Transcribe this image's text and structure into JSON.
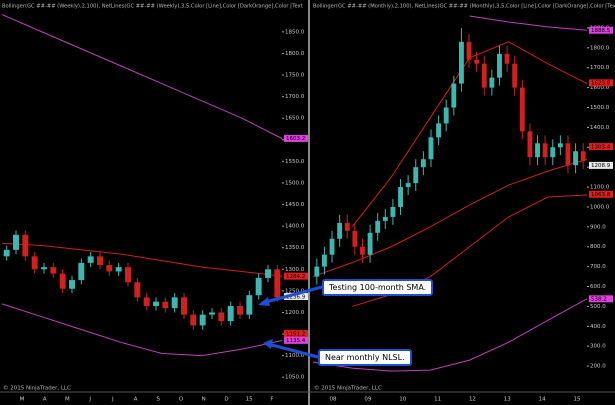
{
  "chart_data": [
    {
      "type": "candlestick",
      "title": "Bollinger(GC ##-## (Weekly),2,100), NetLines(GC ##-## (Weekly),3,5,Color [Line],Color [DarkOrange],Color [Text",
      "footer": "© 2015 NinjaTrader, LLC",
      "x_labels": [
        "M",
        "A",
        "M",
        "J",
        "J",
        "A",
        "S",
        "O",
        "N",
        "D",
        "15",
        "F"
      ],
      "ylim": [
        1032,
        1896
      ],
      "yticks": [
        {
          "value": 1050,
          "label": "1050.0"
        },
        {
          "value": 1100,
          "label": "1100.0"
        },
        {
          "value": 1150,
          "label": "1150.0"
        },
        {
          "value": 1200,
          "label": "1200.0"
        },
        {
          "value": 1250,
          "label": "1250.0"
        },
        {
          "value": 1300,
          "label": "1300.0"
        },
        {
          "value": 1350,
          "label": "1350.0"
        },
        {
          "value": 1400,
          "label": "1400.0"
        },
        {
          "value": 1450,
          "label": "1450.0"
        },
        {
          "value": 1500,
          "label": "1500.0"
        },
        {
          "value": 1550,
          "label": "1550.0"
        },
        {
          "value": 1600,
          "label": "1600.0"
        },
        {
          "value": 1650,
          "label": "1650.0"
        },
        {
          "value": 1700,
          "label": "1700.0"
        },
        {
          "value": 1750,
          "label": "1750.0"
        },
        {
          "value": 1800,
          "label": "1800.0"
        },
        {
          "value": 1850,
          "label": "1850.0"
        }
      ],
      "up_color": "#3cb8b0",
      "down_color": "#d02020",
      "open": [
        1330,
        1345,
        1380,
        1330,
        1300,
        1305,
        1290,
        1255,
        1275,
        1315,
        1330,
        1310,
        1295,
        1305,
        1270,
        1235,
        1215,
        1225,
        1210,
        1235,
        1195,
        1170,
        1195,
        1200,
        1180,
        1215,
        1195,
        1240,
        1280,
        1300
      ],
      "high": [
        1355,
        1390,
        1390,
        1340,
        1315,
        1315,
        1300,
        1285,
        1325,
        1340,
        1340,
        1320,
        1315,
        1315,
        1280,
        1245,
        1235,
        1235,
        1245,
        1245,
        1205,
        1205,
        1210,
        1210,
        1225,
        1225,
        1250,
        1290,
        1310,
        1310
      ],
      "low": [
        1320,
        1335,
        1320,
        1290,
        1290,
        1280,
        1245,
        1245,
        1265,
        1305,
        1300,
        1285,
        1285,
        1260,
        1225,
        1205,
        1205,
        1200,
        1200,
        1185,
        1160,
        1160,
        1185,
        1170,
        1170,
        1185,
        1185,
        1230,
        1270,
        1225
      ],
      "close": [
        1345,
        1380,
        1330,
        1300,
        1305,
        1290,
        1255,
        1275,
        1315,
        1330,
        1310,
        1295,
        1305,
        1270,
        1235,
        1215,
        1225,
        1210,
        1235,
        1195,
        1170,
        1195,
        1200,
        1180,
        1215,
        1195,
        1240,
        1280,
        1300,
        1235
      ],
      "series": [
        {
          "color": "#c040c0",
          "values": [
            1890,
            1850,
            1810,
            1770,
            1730,
            1690,
            1650,
            1603
          ]
        },
        {
          "color": "#d02020",
          "values": [
            1360,
            1355,
            1345,
            1335,
            1320,
            1305,
            1295,
            1284
          ]
        },
        {
          "color": "#c040c0",
          "values": [
            1220,
            1190,
            1160,
            1130,
            1105,
            1100,
            1115,
            1135
          ]
        }
      ],
      "price_tags": [
        {
          "value": 1603.2,
          "color": "#e040e0"
        },
        {
          "value": 1284.2,
          "color": "#e02020"
        },
        {
          "value": 1236.9,
          "color": "#e8e8e8"
        },
        {
          "value": 1151.2,
          "color": "#e02020"
        },
        {
          "value": 1135.4,
          "color": "#e040e0"
        }
      ]
    },
    {
      "type": "candlestick",
      "title": "Bollinger(GC ##-## (Monthly),2,100), NetLines(GC ##-## (Monthly),3,5,Color [Line],Color [DarkOrange],Color [Text",
      "footer": "© 2015 NinjaTrader, LLC",
      "x_labels": [
        "08",
        "09",
        "10",
        "11",
        "12",
        "13",
        "14",
        "15"
      ],
      "ylim": [
        105,
        1980
      ],
      "yticks": [
        {
          "value": 200,
          "label": "200.0"
        },
        {
          "value": 300,
          "label": "300.0"
        },
        {
          "value": 400,
          "label": "400.0"
        },
        {
          "value": 500,
          "label": "500.0"
        },
        {
          "value": 600,
          "label": "600.0"
        },
        {
          "value": 700,
          "label": "700.0"
        },
        {
          "value": 800,
          "label": "800.0"
        },
        {
          "value": 900,
          "label": "900.0"
        },
        {
          "value": 1000,
          "label": "1000.0"
        },
        {
          "value": 1100,
          "label": "1100.0"
        },
        {
          "value": 1200,
          "label": "1200.0"
        },
        {
          "value": 1300,
          "label": "1300.0"
        },
        {
          "value": 1400,
          "label": "1400.0"
        },
        {
          "value": 1500,
          "label": "1500.0"
        },
        {
          "value": 1600,
          "label": "1600.0"
        },
        {
          "value": 1700,
          "label": "1700.0"
        },
        {
          "value": 1800,
          "label": "1800.0"
        },
        {
          "value": 1900,
          "label": "1900.0"
        }
      ],
      "up_color": "#3cb8b0",
      "down_color": "#d02020",
      "open": [
        650,
        700,
        760,
        840,
        920,
        880,
        800,
        760,
        870,
        930,
        950,
        1000,
        1100,
        1120,
        1200,
        1240,
        1350,
        1420,
        1500,
        1620,
        1830,
        1740,
        1720,
        1600,
        1650,
        1770,
        1720,
        1600,
        1380,
        1250,
        1320,
        1250,
        1300,
        1320,
        1210,
        1280
      ],
      "high": [
        740,
        800,
        880,
        960,
        960,
        920,
        840,
        910,
        970,
        990,
        1040,
        1140,
        1160,
        1240,
        1280,
        1390,
        1460,
        1540,
        1660,
        1900,
        1870,
        1780,
        1760,
        1690,
        1810,
        1810,
        1760,
        1640,
        1420,
        1360,
        1360,
        1340,
        1360,
        1360,
        1320,
        1320
      ],
      "low": [
        610,
        660,
        720,
        800,
        840,
        760,
        720,
        720,
        830,
        890,
        910,
        960,
        1060,
        1080,
        1160,
        1200,
        1310,
        1380,
        1460,
        1580,
        1700,
        1680,
        1560,
        1560,
        1610,
        1680,
        1560,
        1340,
        1210,
        1210,
        1210,
        1210,
        1260,
        1170,
        1170,
        1190
      ],
      "close": [
        700,
        760,
        840,
        920,
        880,
        800,
        760,
        870,
        930,
        950,
        1000,
        1100,
        1120,
        1200,
        1240,
        1350,
        1420,
        1500,
        1620,
        1830,
        1740,
        1720,
        1600,
        1650,
        1770,
        1720,
        1600,
        1380,
        1250,
        1320,
        1250,
        1300,
        1320,
        1210,
        1280,
        1230
      ],
      "series": [
        {
          "color": "#c040c0",
          "values": [
            null,
            null,
            null,
            null,
            1960,
            1930,
            1905,
            1888
          ]
        },
        {
          "color": "#d02020",
          "values": [
            null,
            900,
            1150,
            1450,
            1750,
            1830,
            1720,
            1620
          ]
        },
        {
          "color": "#d02020",
          "values": [
            650,
            720,
            800,
            900,
            1010,
            1110,
            1180,
            1240
          ]
        },
        {
          "color": "#d02020",
          "values": [
            null,
            500,
            560,
            650,
            800,
            950,
            1050,
            1060
          ]
        },
        {
          "color": "#c040c0",
          "values": [
            220,
            190,
            175,
            180,
            230,
            320,
            430,
            538
          ]
        }
      ],
      "price_tags": [
        {
          "value": 1888.5,
          "color": "#e040e0"
        },
        {
          "value": 1623.8,
          "color": "#e02020"
        },
        {
          "value": 1303.4,
          "color": "#e02020"
        },
        {
          "value": 1208.9,
          "color": "#e8e8e8"
        },
        {
          "value": 1063.8,
          "color": "#e02020"
        },
        {
          "value": 538.2,
          "color": "#e040e0"
        }
      ]
    }
  ],
  "annotations": [
    "Testing 100-month SMA.",
    "Near monthly NLSL."
  ]
}
